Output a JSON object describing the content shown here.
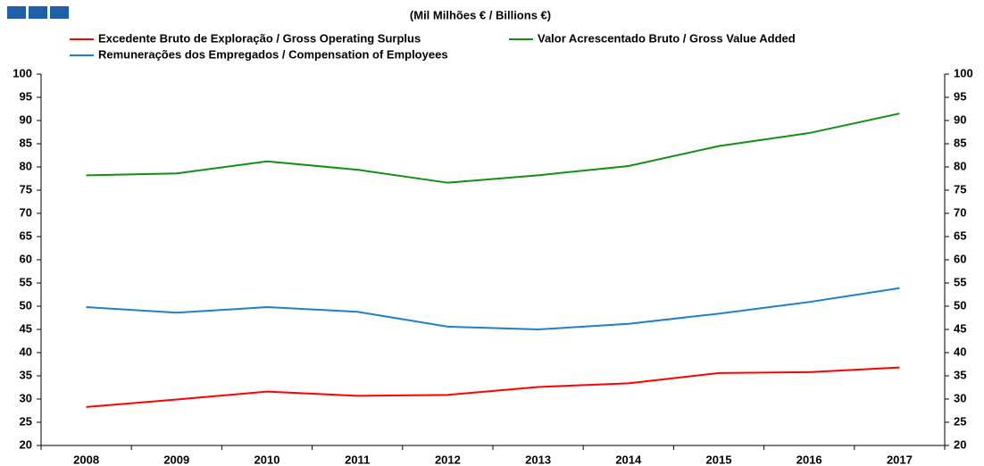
{
  "chart_data": {
    "type": "line",
    "title": "(Mil Milhões € / Billions €)",
    "categories": [
      "2008",
      "2009",
      "2010",
      "2011",
      "2012",
      "2013",
      "2014",
      "2015",
      "2016",
      "2017"
    ],
    "series": [
      {
        "name": "Excedente Bruto de Exploração / Gross Operating Surplus",
        "color": "#ff0000",
        "values": [
          28.3,
          29.9,
          31.6,
          30.7,
          30.9,
          32.6,
          33.4,
          35.6,
          35.8,
          36.8
        ]
      },
      {
        "name": "Valor Acrescentado Bruto / Gross Value Added",
        "color": "#138f13",
        "values": [
          78.2,
          78.6,
          81.2,
          79.4,
          76.6,
          78.2,
          80.2,
          84.5,
          87.3,
          91.5
        ]
      },
      {
        "name": "Remunerações dos Empregados / Compensation of Employees",
        "color": "#1f7fc8",
        "values": [
          49.8,
          48.6,
          49.8,
          48.8,
          45.6,
          45.0,
          46.2,
          48.4,
          50.9,
          53.9
        ]
      }
    ],
    "ylim": [
      20,
      100
    ],
    "yticks": [
      20,
      25,
      30,
      35,
      40,
      45,
      50,
      55,
      60,
      65,
      70,
      75,
      80,
      85,
      90,
      95,
      100
    ],
    "y2lim": [
      20,
      100
    ],
    "y2ticks": [
      20,
      25,
      30,
      35,
      40,
      45,
      50,
      55,
      60,
      65,
      70,
      75,
      80,
      85,
      90,
      95,
      100
    ],
    "grid": false
  }
}
